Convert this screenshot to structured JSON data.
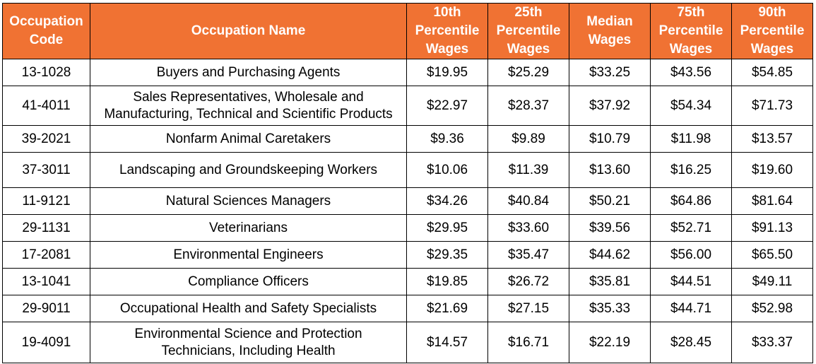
{
  "table": {
    "columns": [
      "Occupation Code",
      "Occupation Name",
      "10th Percentile Wages",
      "25th Percentile Wages",
      "Median Wages",
      "75th Percentile Wages",
      "90th Percentile Wages"
    ],
    "header_lines": [
      [
        "Occupation",
        "Code"
      ],
      [
        "Occupation Name"
      ],
      [
        "10th",
        "Percentile",
        "Wages"
      ],
      [
        "25th",
        "Percentile",
        "Wages"
      ],
      [
        "Median",
        "Wages"
      ],
      [
        "75th",
        "Percentile",
        "Wages"
      ],
      [
        "90th",
        "Percentile",
        "Wages"
      ]
    ],
    "rows": [
      {
        "code": "13-1028",
        "name": "Buyers and Purchasing Agents",
        "p10": "$19.95",
        "p25": "$25.29",
        "median": "$33.25",
        "p75": "$43.56",
        "p90": "$54.85"
      },
      {
        "code": "41-4011",
        "name": "Sales Representatives, Wholesale and Manufacturing, Technical and Scientific Products",
        "p10": "$22.97",
        "p25": "$28.37",
        "median": "$37.92",
        "p75": "$54.34",
        "p90": "$71.73"
      },
      {
        "code": "39-2021",
        "name": "Nonfarm Animal Caretakers",
        "p10": "$9.36",
        "p25": "$9.89",
        "median": "$10.79",
        "p75": "$11.98",
        "p90": "$13.57"
      },
      {
        "code": "37-3011",
        "name": "Landscaping and Groundskeeping Workers",
        "p10": "$10.06",
        "p25": "$11.39",
        "median": "$13.60",
        "p75": "$16.25",
        "p90": "$19.60"
      },
      {
        "code": "11-9121",
        "name": "Natural Sciences Managers",
        "p10": "$34.26",
        "p25": "$40.84",
        "median": "$50.21",
        "p75": "$64.86",
        "p90": "$81.64"
      },
      {
        "code": "29-1131",
        "name": "Veterinarians",
        "p10": "$29.95",
        "p25": "$33.60",
        "median": "$39.56",
        "p75": "$52.71",
        "p90": "$91.13"
      },
      {
        "code": "17-2081",
        "name": "Environmental Engineers",
        "p10": "$29.35",
        "p25": "$35.47",
        "median": "$44.62",
        "p75": "$56.00",
        "p90": "$65.50"
      },
      {
        "code": "13-1041",
        "name": "Compliance Officers",
        "p10": "$19.85",
        "p25": "$26.72",
        "median": "$35.81",
        "p75": "$44.51",
        "p90": "$49.11"
      },
      {
        "code": "29-9011",
        "name": "Occupational Health and Safety Specialists",
        "p10": "$21.69",
        "p25": "$27.15",
        "median": "$35.33",
        "p75": "$44.71",
        "p90": "$52.98"
      },
      {
        "code": "19-4091",
        "name": "Environmental Science and Protection Technicians, Including Health",
        "p10": "$14.57",
        "p25": "$16.71",
        "median": "$22.19",
        "p75": "$28.45",
        "p90": "$33.37"
      }
    ]
  },
  "colors": {
    "header_background": "#f07233",
    "header_text": "#ffffff",
    "border": "#000000"
  }
}
